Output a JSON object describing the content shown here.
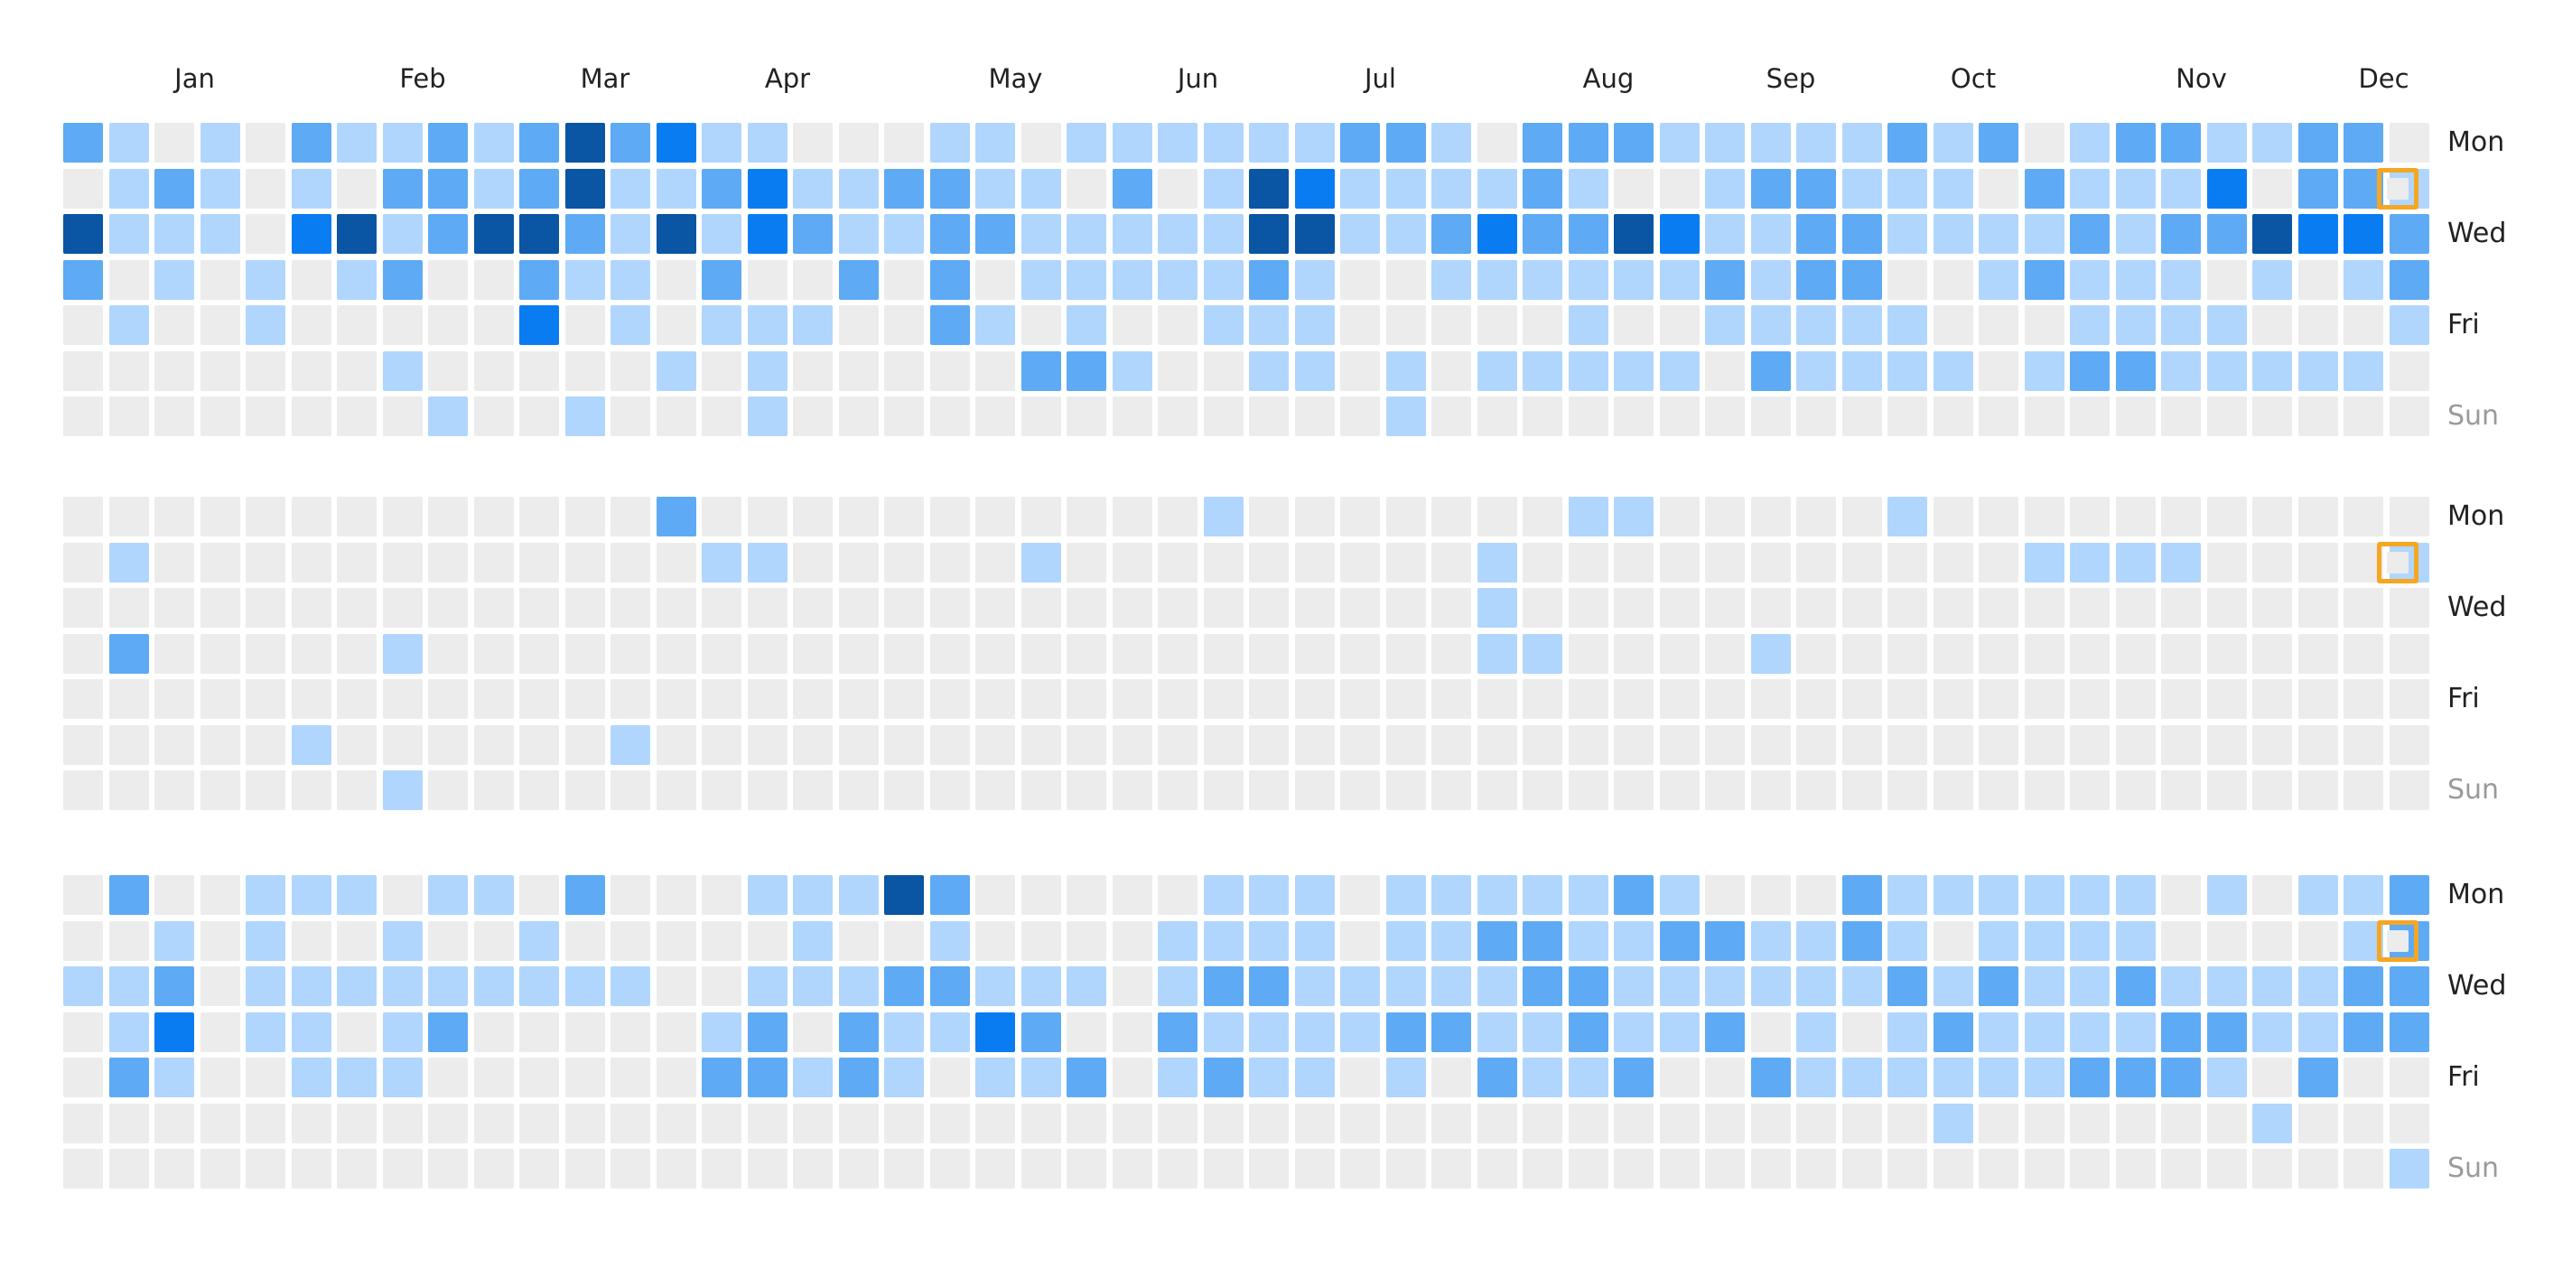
{
  "chart_data": {
    "type": "heatmap",
    "months": [
      "Jan",
      "Feb",
      "Mar",
      "Apr",
      "May",
      "Jun",
      "Jul",
      "Aug",
      "Sep",
      "Oct",
      "Nov",
      "Dec"
    ],
    "month_start_week": [
      3,
      8,
      12,
      16,
      21,
      25,
      29,
      34,
      38,
      42,
      47,
      51
    ],
    "day_labels": [
      "Mon",
      "",
      "Wed",
      "",
      "Fri",
      "",
      "Sun"
    ],
    "levels": [
      "#ececec",
      "#b1d6fd",
      "#5eaaf5",
      "#0a7cf2",
      "#0a55a4"
    ],
    "today_marker_color": "#f5a623",
    "today_marker_day_index": 1,
    "panels": [
      {
        "name": "panel-1",
        "grid": [
          "2101021121242311000110111111221022211111212012211220",
          "0121010221241123112211020143111121001221110211130221",
          "4111034124421413211221111144112322431122111121224332",
          "2010101200211020020201111121001111112122001211101012",
          "0100100000301011100210100111000001001111100011110001",
          "0000000100000101000002210011010111110211110122111110",
          "0000000010010001000000000000010000000000000000000000"
        ]
      },
      {
        "name": "panel-2",
        "grid": [
          "0000000000000200000000000100000001100000100000000000",
          "0100000000000011000001000000000100000000000111100001",
          "0000000000000000000000000000000100000000000000000000",
          "0200000100000000000000000000000110000100000000000000",
          "0000000000000000000000000000000000000000000000000000",
          "0000010000001000000000000000000000000000000000000000",
          "0000000100000000000000000000000000000000000000000000"
        ]
      },
      {
        "name": "panel-3",
        "grid": [
          "0200111011020001114200000111011111210002111111010112",
          "0010100100100000100100001111011221122112101111000012",
          "1120111111111001112211101221111122111111212112111122",
          "0130110120000012021132002111122112112010121111221122",
          "0210011100000022121011201211010211200211111122210200",
          "0000000000000000000000000000000000000000010000001000",
          "0000000000000000000000000000000000000000000000000001"
        ]
      }
    ]
  }
}
